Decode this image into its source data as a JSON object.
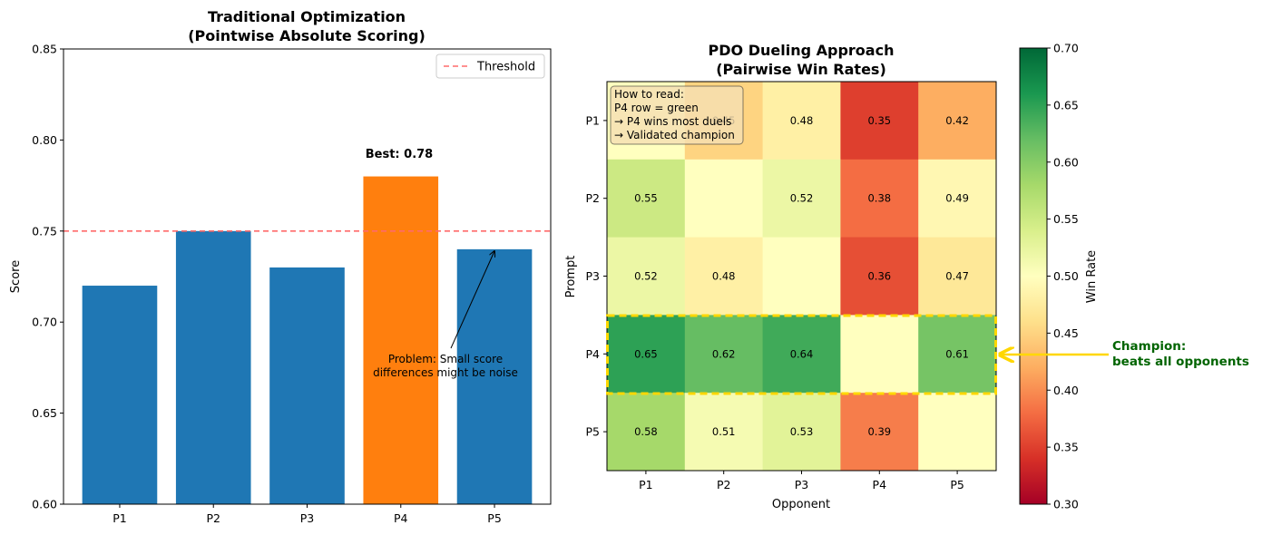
{
  "chart_data": [
    {
      "type": "bar",
      "title": "Traditional Optimization",
      "subtitle": "(Pointwise Absolute Scoring)",
      "xlabel": "",
      "ylabel": "Score",
      "categories": [
        "P1",
        "P2",
        "P3",
        "P4",
        "P5"
      ],
      "values": [
        0.72,
        0.75,
        0.73,
        0.78,
        0.74
      ],
      "ylim": [
        0.6,
        0.85
      ],
      "yticks": [
        0.6,
        0.65,
        0.7,
        0.75,
        0.8,
        0.85
      ],
      "ytick_labels": [
        "0.60",
        "0.65",
        "0.70",
        "0.75",
        "0.80",
        "0.85"
      ],
      "highlight_index": 3,
      "bar_color": "#1f77b4",
      "highlight_color": "#ff7f0e",
      "threshold": 0.75,
      "threshold_color": "#ff6b6b",
      "legend": [
        "Threshold"
      ],
      "legend_position": "top-right",
      "best_label": "Best: 0.78",
      "annotation": {
        "lines": [
          "Problem: Small score",
          "differences might be noise"
        ],
        "points_to": {
          "x": "P5",
          "y": 0.74
        }
      }
    },
    {
      "type": "heatmap",
      "title": "PDO Dueling Approach",
      "subtitle": "(Pairwise Win Rates)",
      "xlabel": "Opponent",
      "ylabel": "Prompt",
      "rows": [
        "P1",
        "P2",
        "P3",
        "P4",
        "P5"
      ],
      "cols": [
        "P1",
        "P2",
        "P3",
        "P4",
        "P5"
      ],
      "values": [
        [
          0.5,
          0.45,
          0.48,
          0.35,
          0.42
        ],
        [
          0.55,
          0.5,
          0.52,
          0.38,
          0.49
        ],
        [
          0.52,
          0.48,
          0.5,
          0.36,
          0.47
        ],
        [
          0.65,
          0.62,
          0.64,
          0.5,
          0.61
        ],
        [
          0.58,
          0.51,
          0.53,
          0.39,
          0.5
        ]
      ],
      "labels": [
        [
          "",
          "0.45",
          "0.48",
          "0.35",
          "0.42"
        ],
        [
          "0.55",
          "",
          "0.52",
          "0.38",
          "0.49"
        ],
        [
          "0.52",
          "0.48",
          "",
          "0.36",
          "0.47"
        ],
        [
          "0.65",
          "0.62",
          "0.64",
          "",
          "0.61"
        ],
        [
          "0.58",
          "0.51",
          "0.53",
          "0.39",
          ""
        ]
      ],
      "colormap": "RdYlGn",
      "vmin": 0.3,
      "vmax": 0.7,
      "colorbar_label": "Win Rate",
      "colorbar_ticks": [
        0.3,
        0.35,
        0.4,
        0.45,
        0.5,
        0.55,
        0.6,
        0.65,
        0.7
      ],
      "colorbar_tick_labels": [
        "0.30",
        "0.35",
        "0.40",
        "0.45",
        "0.50",
        "0.55",
        "0.60",
        "0.65",
        "0.70"
      ],
      "highlight_row": 3,
      "highlight_color": "#ffd700",
      "note_lines": [
        "How to read:",
        "P4 row = green",
        "→ P4 wins most duels",
        "→ Validated champion"
      ],
      "champion_lines": [
        "Champion:",
        "beats all opponents"
      ],
      "champion_color": "#006400"
    }
  ]
}
